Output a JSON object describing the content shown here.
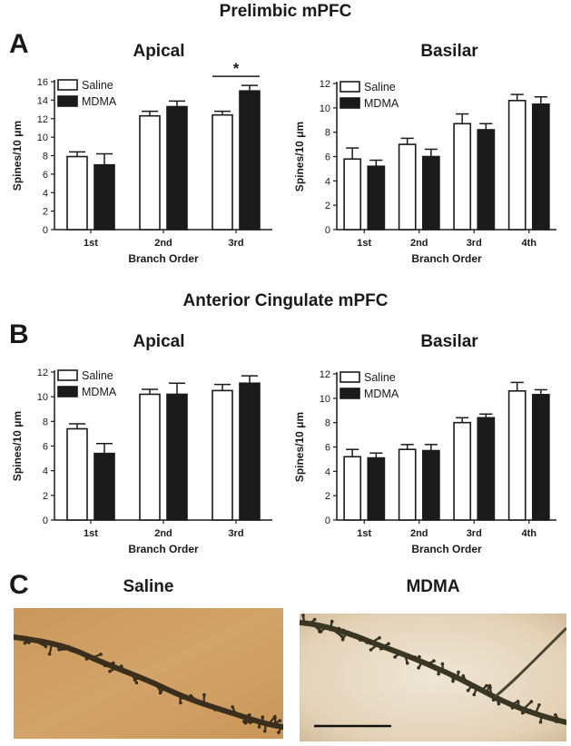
{
  "section_a_title": "Prelimbic mPFC",
  "section_b_title": "Anterior Cingulate mPFC",
  "panel_letters": {
    "a": "A",
    "b": "B",
    "c": "C"
  },
  "colors": {
    "saline": "#ffffff",
    "mdma": "#1a1a1a",
    "axis": "#1a1a1a"
  },
  "chart_data": [
    {
      "type": "bar",
      "title": "Apical",
      "xlabel": "Branch Order",
      "ylabel": "Spines/10 μm",
      "categories": [
        "1st",
        "2nd",
        "3rd"
      ],
      "ylim": [
        0,
        16
      ],
      "yticks": [
        "0",
        "2",
        "4",
        "6",
        "8",
        "10",
        "12",
        "14",
        "16"
      ],
      "legend": "top-left",
      "series": [
        {
          "name": "Saline",
          "values": [
            7.9,
            12.3,
            12.4
          ],
          "errors": [
            0.5,
            0.5,
            0.4
          ]
        },
        {
          "name": "MDMA",
          "values": [
            7.0,
            13.3,
            15.0
          ],
          "errors": [
            1.2,
            0.6,
            0.6
          ]
        }
      ],
      "annotation": {
        "text": "*",
        "category": "3rd"
      }
    },
    {
      "type": "bar",
      "title": "Basilar",
      "xlabel": "Branch Order",
      "ylabel": "Spines/10 μm",
      "categories": [
        "1st",
        "2nd",
        "3rd",
        "4th"
      ],
      "ylim": [
        0,
        12
      ],
      "yticks": [
        "0",
        "2",
        "4",
        "6",
        "8",
        "10",
        "12"
      ],
      "legend": "top-left",
      "series": [
        {
          "name": "Saline",
          "values": [
            5.8,
            7.0,
            8.7,
            10.6
          ],
          "errors": [
            0.9,
            0.5,
            0.8,
            0.5
          ]
        },
        {
          "name": "MDMA",
          "values": [
            5.2,
            6.0,
            8.2,
            10.3
          ],
          "errors": [
            0.5,
            0.6,
            0.5,
            0.6
          ]
        }
      ]
    },
    {
      "type": "bar",
      "title": "Apical",
      "xlabel": "Branch Order",
      "ylabel": "Spines/10 μm",
      "categories": [
        "1st",
        "2nd",
        "3rd"
      ],
      "ylim": [
        0,
        12
      ],
      "yticks": [
        "0",
        "2",
        "4",
        "6",
        "8",
        "10",
        "12"
      ],
      "legend": "top-left",
      "series": [
        {
          "name": "Saline",
          "values": [
            7.4,
            10.2,
            10.5
          ],
          "errors": [
            0.4,
            0.4,
            0.5
          ]
        },
        {
          "name": "MDMA",
          "values": [
            5.4,
            10.2,
            11.1
          ],
          "errors": [
            0.8,
            0.9,
            0.6
          ]
        }
      ]
    },
    {
      "type": "bar",
      "title": "Basilar",
      "xlabel": "Branch Order",
      "ylabel": "Spines/10 μm",
      "categories": [
        "1st",
        "2nd",
        "3rd",
        "4th"
      ],
      "ylim": [
        0,
        12
      ],
      "yticks": [
        "0",
        "2",
        "4",
        "6",
        "8",
        "10",
        "12"
      ],
      "legend": "top-left",
      "series": [
        {
          "name": "Saline",
          "values": [
            5.2,
            5.8,
            8.0,
            10.6
          ],
          "errors": [
            0.6,
            0.4,
            0.4,
            0.7
          ]
        },
        {
          "name": "MDMA",
          "values": [
            5.1,
            5.7,
            8.4,
            10.3
          ],
          "errors": [
            0.4,
            0.5,
            0.3,
            0.4
          ]
        }
      ]
    }
  ],
  "photos": [
    {
      "label": "Saline"
    },
    {
      "label": "MDMA"
    }
  ]
}
